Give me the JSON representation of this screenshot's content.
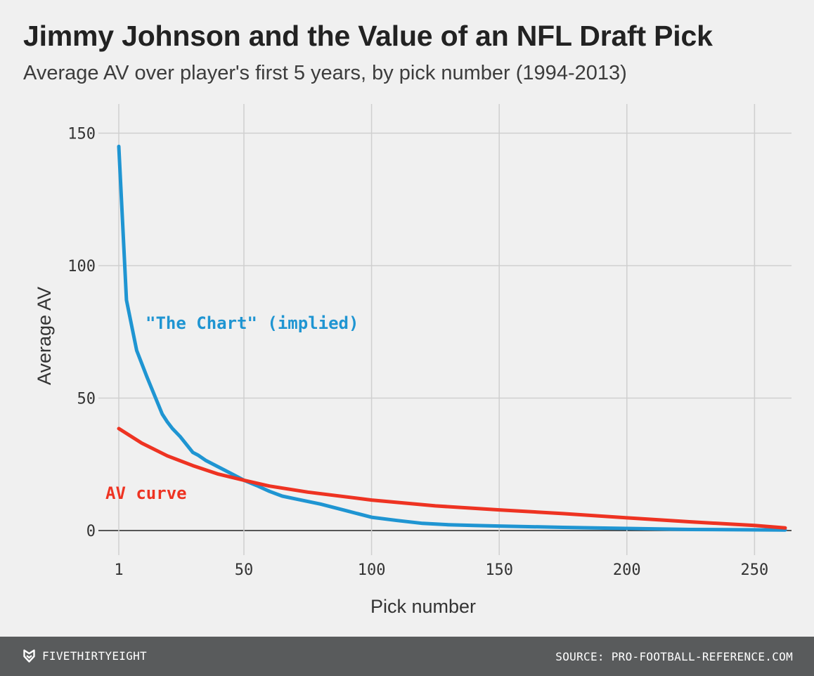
{
  "chart_data": {
    "type": "line",
    "title": "Jimmy Johnson and the Value of an NFL Draft Pick",
    "subtitle": "Average AV over player's first 5 years, by pick number (1994-2013)",
    "xlabel": "Pick number",
    "ylabel": "Average AV",
    "xlim": [
      1,
      262
    ],
    "ylim": [
      0,
      160
    ],
    "x_ticks": [
      1,
      50,
      100,
      150,
      200,
      250
    ],
    "y_ticks": [
      0,
      50,
      100,
      150
    ],
    "grid": true,
    "legend": "inline labels",
    "series": [
      {
        "name": "\"The Chart\" (implied)",
        "color": "#1f95d2",
        "points": [
          [
            1,
            145
          ],
          [
            4,
            87
          ],
          [
            8,
            68
          ],
          [
            12,
            58
          ],
          [
            18,
            44
          ],
          [
            20,
            41
          ],
          [
            22,
            38.5
          ],
          [
            25,
            35.5
          ],
          [
            30,
            29.5
          ],
          [
            32,
            28.5
          ],
          [
            35,
            26.5
          ],
          [
            40,
            24
          ],
          [
            45,
            21.5
          ],
          [
            50,
            19
          ],
          [
            55,
            17
          ],
          [
            60,
            14.8
          ],
          [
            65,
            13
          ],
          [
            70,
            12
          ],
          [
            80,
            10
          ],
          [
            90,
            7.5
          ],
          [
            100,
            5
          ],
          [
            110,
            3.8
          ],
          [
            120,
            2.7
          ],
          [
            130,
            2.2
          ],
          [
            140,
            1.9
          ],
          [
            150,
            1.7
          ],
          [
            175,
            1.2
          ],
          [
            200,
            0.8
          ],
          [
            225,
            0.4
          ],
          [
            262,
            0.2
          ]
        ]
      },
      {
        "name": "AV curve",
        "color": "#ee3322",
        "points": [
          [
            1,
            38.5
          ],
          [
            10,
            33
          ],
          [
            20,
            28.2
          ],
          [
            30,
            24.5
          ],
          [
            40,
            21.3
          ],
          [
            50,
            19
          ],
          [
            60,
            16.8
          ],
          [
            75,
            14.5
          ],
          [
            100,
            11.5
          ],
          [
            125,
            9.3
          ],
          [
            150,
            7.8
          ],
          [
            175,
            6.4
          ],
          [
            200,
            4.8
          ],
          [
            225,
            3.3
          ],
          [
            250,
            1.9
          ],
          [
            262,
            1
          ]
        ]
      }
    ]
  },
  "footer": {
    "brand": "FIVETHIRTYEIGHT",
    "source": "SOURCE: PRO-FOOTBALL-REFERENCE.COM"
  }
}
